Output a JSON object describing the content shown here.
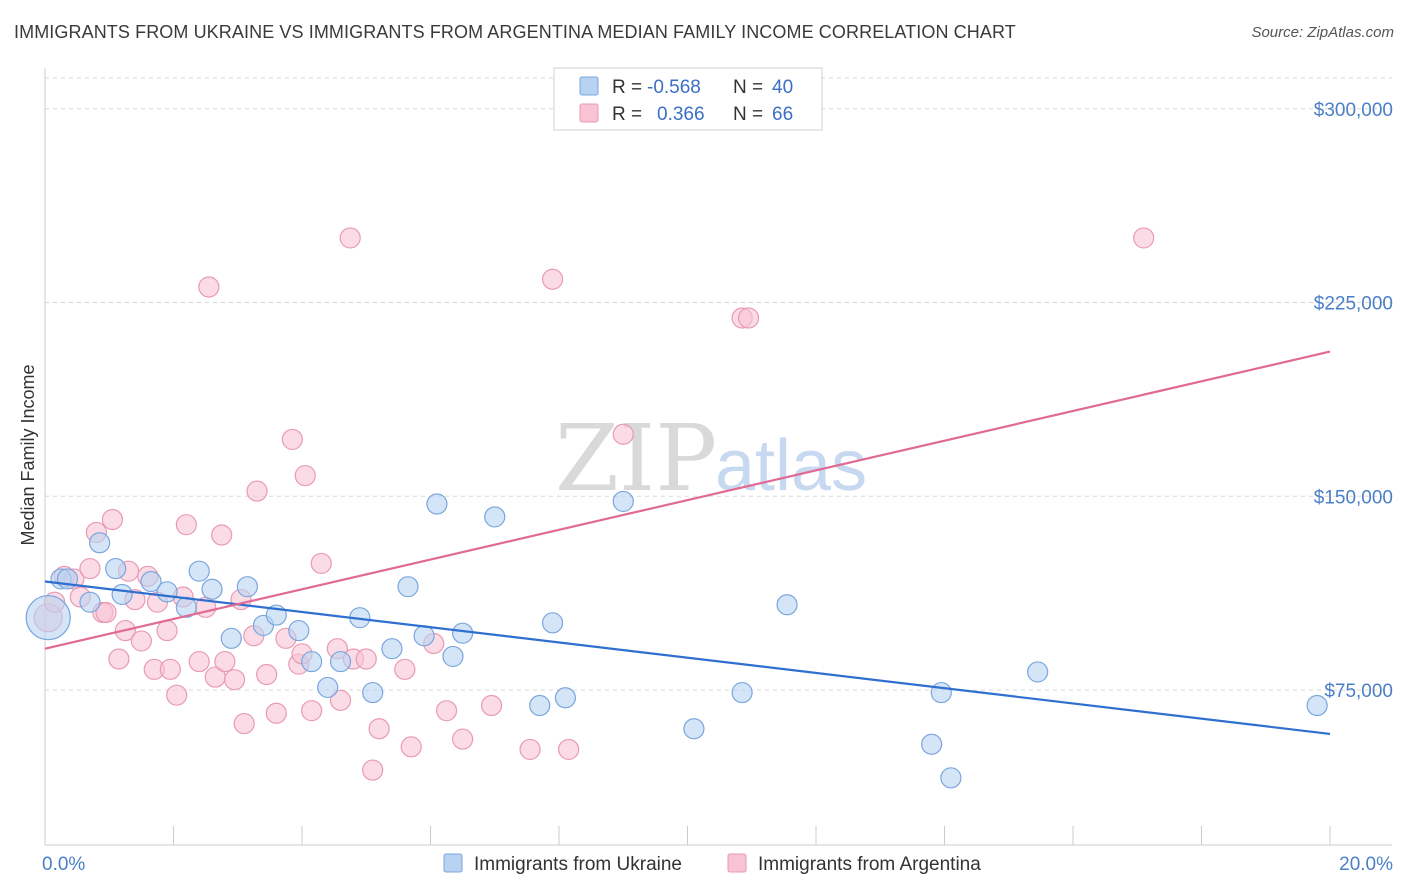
{
  "title": "IMMIGRANTS FROM UKRAINE VS IMMIGRANTS FROM ARGENTINA MEDIAN FAMILY INCOME CORRELATION CHART",
  "source": "Source: ZipAtlas.com",
  "watermark": {
    "zip": "ZIP",
    "atlas": "atlas"
  },
  "colors": {
    "ukraine_fill": "#b8d3f2",
    "ukraine_stroke": "#7aa6dc",
    "ukraine_line": "#2f6fd0",
    "argentina_fill": "#f8c3d3",
    "argentina_stroke": "#e89ab4",
    "argentina_line": "#e06a93",
    "tick_text": "#4a7fc8",
    "grid": "#d8d8d8"
  },
  "legend": {
    "rows": [
      {
        "r_label": "R =",
        "r_value": "-0.568",
        "n_label": "N =",
        "n_value": "40"
      },
      {
        "r_label": "R =",
        "r_value": "0.366",
        "n_label": "N =",
        "n_value": "66"
      }
    ]
  },
  "chart_data": {
    "type": "scatter",
    "xlabel": "",
    "ylabel": "Median Family Income",
    "xlim": [
      0,
      20
    ],
    "ylim": [
      15000,
      315000
    ],
    "x_tick_labels": [
      {
        "value": 0,
        "label": "0.0%"
      },
      {
        "value": 20,
        "label": "20.0%"
      }
    ],
    "y_ticks": [
      {
        "value": 75000,
        "label": "$75,000"
      },
      {
        "value": 150000,
        "label": "$150,000"
      },
      {
        "value": 225000,
        "label": "$225,000"
      },
      {
        "value": 300000,
        "label": "$300,000"
      }
    ],
    "grid": "horizontal dashed",
    "legend_position": "top-center",
    "series": [
      {
        "name": "Immigrants from Ukraine",
        "r": -0.568,
        "n": 40,
        "trend": {
          "x": [
            0,
            20
          ],
          "y": [
            117000,
            58000
          ]
        },
        "points": [
          [
            0.05,
            103000,
            22
          ],
          [
            0.25,
            118000,
            10
          ],
          [
            0.35,
            118000,
            10
          ],
          [
            0.7,
            109000,
            10
          ],
          [
            0.85,
            132000,
            10
          ],
          [
            1.1,
            122000,
            10
          ],
          [
            1.2,
            112000,
            10
          ],
          [
            1.65,
            117000,
            10
          ],
          [
            1.9,
            113000,
            10
          ],
          [
            2.2,
            107000,
            10
          ],
          [
            2.4,
            121000,
            10
          ],
          [
            2.6,
            114000,
            10
          ],
          [
            2.9,
            95000,
            10
          ],
          [
            3.15,
            115000,
            10
          ],
          [
            3.4,
            100000,
            10
          ],
          [
            3.6,
            104000,
            10
          ],
          [
            3.95,
            98000,
            10
          ],
          [
            4.15,
            86000,
            10
          ],
          [
            4.4,
            76000,
            10
          ],
          [
            4.6,
            86000,
            10
          ],
          [
            4.9,
            103000,
            10
          ],
          [
            5.1,
            74000,
            10
          ],
          [
            5.4,
            91000,
            10
          ],
          [
            5.65,
            115000,
            10
          ],
          [
            5.9,
            96000,
            10
          ],
          [
            6.1,
            147000,
            10
          ],
          [
            6.35,
            88000,
            10
          ],
          [
            6.5,
            97000,
            10
          ],
          [
            7.0,
            142000,
            10
          ],
          [
            7.7,
            69000,
            10
          ],
          [
            7.9,
            101000,
            10
          ],
          [
            8.1,
            72000,
            10
          ],
          [
            9.0,
            148000,
            10
          ],
          [
            10.1,
            60000,
            10
          ],
          [
            10.85,
            74000,
            10
          ],
          [
            11.55,
            108000,
            10
          ],
          [
            13.8,
            54000,
            10
          ],
          [
            13.95,
            74000,
            10
          ],
          [
            14.1,
            41000,
            10
          ],
          [
            15.45,
            82000,
            10
          ],
          [
            19.8,
            69000,
            10
          ]
        ]
      },
      {
        "name": "Immigrants from Argentina",
        "r": 0.366,
        "n": 66,
        "trend": {
          "x": [
            0,
            20
          ],
          "y": [
            91000,
            206000
          ]
        },
        "points": [
          [
            0.05,
            103000,
            14
          ],
          [
            0.15,
            109000,
            10
          ],
          [
            0.3,
            119000,
            10
          ],
          [
            0.45,
            118000,
            10
          ],
          [
            0.55,
            111000,
            10
          ],
          [
            0.7,
            122000,
            10
          ],
          [
            0.8,
            136000,
            10
          ],
          [
            0.9,
            105000,
            10
          ],
          [
            0.95,
            105000,
            10
          ],
          [
            1.05,
            141000,
            10
          ],
          [
            1.15,
            87000,
            10
          ],
          [
            1.25,
            98000,
            10
          ],
          [
            1.3,
            121000,
            10
          ],
          [
            1.4,
            110000,
            10
          ],
          [
            1.5,
            94000,
            10
          ],
          [
            1.6,
            119000,
            10
          ],
          [
            1.7,
            83000,
            10
          ],
          [
            1.75,
            109000,
            10
          ],
          [
            1.9,
            98000,
            10
          ],
          [
            1.95,
            83000,
            10
          ],
          [
            2.05,
            73000,
            10
          ],
          [
            2.15,
            111000,
            10
          ],
          [
            2.2,
            139000,
            10
          ],
          [
            2.4,
            86000,
            10
          ],
          [
            2.5,
            107000,
            10
          ],
          [
            2.55,
            231000,
            10
          ],
          [
            2.65,
            80000,
            10
          ],
          [
            2.75,
            135000,
            10
          ],
          [
            2.8,
            86000,
            10
          ],
          [
            2.95,
            79000,
            10
          ],
          [
            3.05,
            110000,
            10
          ],
          [
            3.1,
            62000,
            10
          ],
          [
            3.25,
            96000,
            10
          ],
          [
            3.3,
            152000,
            10
          ],
          [
            3.45,
            81000,
            10
          ],
          [
            3.6,
            66000,
            10
          ],
          [
            3.75,
            95000,
            10
          ],
          [
            3.85,
            172000,
            10
          ],
          [
            3.95,
            85000,
            10
          ],
          [
            4.0,
            89000,
            10
          ],
          [
            4.05,
            158000,
            10
          ],
          [
            4.15,
            67000,
            10
          ],
          [
            4.3,
            124000,
            10
          ],
          [
            4.55,
            91000,
            10
          ],
          [
            4.6,
            71000,
            10
          ],
          [
            4.75,
            250000,
            10
          ],
          [
            4.8,
            87000,
            10
          ],
          [
            5.0,
            87000,
            10
          ],
          [
            5.1,
            44000,
            10
          ],
          [
            5.2,
            60000,
            10
          ],
          [
            5.6,
            83000,
            10
          ],
          [
            5.7,
            53000,
            10
          ],
          [
            6.05,
            93000,
            10
          ],
          [
            6.25,
            67000,
            10
          ],
          [
            6.5,
            56000,
            10
          ],
          [
            6.95,
            69000,
            10
          ],
          [
            7.55,
            52000,
            10
          ],
          [
            7.9,
            234000,
            10
          ],
          [
            8.15,
            52000,
            10
          ],
          [
            9.0,
            174000,
            10
          ],
          [
            10.85,
            219000,
            10
          ],
          [
            10.95,
            219000,
            10
          ],
          [
            17.1,
            250000,
            10
          ]
        ]
      }
    ]
  }
}
